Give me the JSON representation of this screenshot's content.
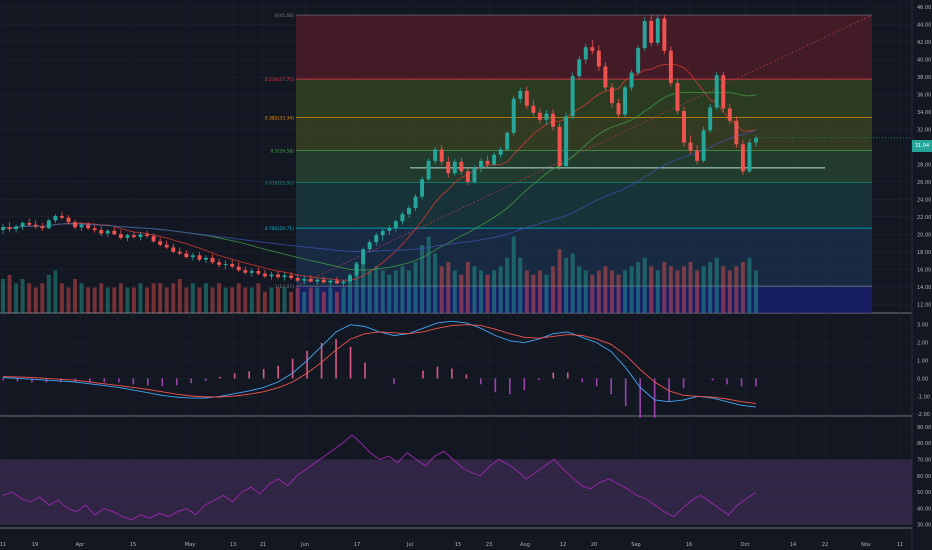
{
  "colors": {
    "background": "#131722",
    "grid": "#1f2430",
    "axis_text": "#b2b5be",
    "up": "#26a69a",
    "down": "#ef5350",
    "vol_up": "#26a69a",
    "vol_down": "#ef5350",
    "ma_red": "#e53935",
    "ma_green": "#43a047",
    "ma_blue": "#3f51b5",
    "macd": "#42a5f5",
    "signal": "#ef5350",
    "rsi": "#9c27b0",
    "rsi_band": "#3a2a4f",
    "last_price_bg": "#26a69a"
  },
  "price_axis": {
    "ticks": [
      "46.00",
      "44.00",
      "42.00",
      "40.00",
      "38.00",
      "36.00",
      "34.00",
      "32.00",
      "30.00",
      "28.00",
      "26.00",
      "24.00",
      "22.00",
      "20.00",
      "18.00",
      "16.00",
      "14.00",
      "12.00"
    ]
  },
  "last_price": "31.04",
  "macd_axis": {
    "ticks": [
      "3.00",
      "2.00",
      "1.00",
      "0.00",
      "-1.00",
      "-2.00"
    ]
  },
  "rsi_axis": {
    "ticks": [
      "90.00",
      "80.00",
      "70.00",
      "60.00",
      "50.00",
      "40.00",
      "30.00"
    ]
  },
  "time_axis": {
    "ticks": [
      "11",
      "19",
      "Apr",
      "15",
      "May",
      "13",
      "21",
      "Jun",
      "17",
      "Jul",
      "15",
      "23",
      "Aug",
      "12",
      "20",
      "Sep",
      "16",
      "Oct",
      "14",
      "22",
      "Nov",
      "11"
    ]
  },
  "fib_levels": [
    {
      "label": "0(45.08)",
      "value": 45.08,
      "color": "#787b86"
    },
    {
      "label": "0.236(37.75)",
      "value": 37.75,
      "color": "#f23645"
    },
    {
      "label": "0.382(33.34)",
      "value": 33.34,
      "color": "#ff9800"
    },
    {
      "label": "0.5(29.58)",
      "value": 29.58,
      "color": "#4caf50"
    },
    {
      "label": "0.618(25.92)",
      "value": 25.92,
      "color": "#089981"
    },
    {
      "label": "0.786(20.71)",
      "value": 20.71,
      "color": "#00bcd4"
    },
    {
      "label": "1(14.07)",
      "value": 14.07,
      "color": "#787b86"
    }
  ],
  "chart_data": {
    "type": "candlestick",
    "price_range": [
      11.0,
      46.8
    ],
    "horizontal_line": 27.6,
    "candles": [
      [
        20.5,
        21.2,
        20.1,
        20.8
      ],
      [
        20.8,
        21.4,
        20.3,
        20.6
      ],
      [
        20.6,
        21.1,
        20.2,
        20.9
      ],
      [
        20.9,
        21.5,
        20.5,
        21.3
      ],
      [
        21.3,
        21.8,
        20.9,
        21.1
      ],
      [
        21.1,
        21.6,
        20.6,
        20.9
      ],
      [
        20.9,
        21.3,
        20.4,
        20.7
      ],
      [
        20.7,
        21.8,
        20.6,
        21.6
      ],
      [
        21.6,
        22.3,
        21.3,
        22.1
      ],
      [
        22.1,
        22.6,
        21.7,
        21.9
      ],
      [
        21.9,
        22.2,
        21.2,
        21.4
      ],
      [
        21.4,
        21.7,
        20.6,
        20.8
      ],
      [
        20.8,
        21.3,
        20.4,
        21.1
      ],
      [
        21.1,
        21.4,
        20.5,
        20.7
      ],
      [
        20.7,
        21.0,
        20.2,
        20.5
      ],
      [
        20.5,
        20.9,
        19.8,
        20.1
      ],
      [
        20.1,
        20.6,
        19.7,
        20.4
      ],
      [
        20.4,
        20.8,
        19.9,
        20.0
      ],
      [
        20.0,
        20.5,
        19.4,
        19.6
      ],
      [
        19.6,
        20.1,
        19.2,
        19.9
      ],
      [
        19.9,
        20.3,
        19.5,
        19.7
      ],
      [
        19.7,
        20.2,
        19.3,
        20.0
      ],
      [
        20.0,
        20.4,
        19.6,
        19.8
      ],
      [
        19.8,
        20.1,
        19.0,
        19.2
      ],
      [
        19.2,
        19.6,
        18.6,
        18.8
      ],
      [
        18.8,
        19.3,
        18.3,
        18.5
      ],
      [
        18.5,
        18.9,
        17.8,
        18.0
      ],
      [
        18.0,
        18.5,
        17.6,
        17.8
      ],
      [
        17.8,
        18.2,
        17.2,
        17.4
      ],
      [
        17.4,
        17.9,
        17.0,
        17.6
      ],
      [
        17.6,
        18.0,
        16.9,
        17.1
      ],
      [
        17.1,
        17.6,
        16.7,
        17.3
      ],
      [
        17.3,
        17.7,
        16.6,
        16.8
      ],
      [
        16.8,
        17.2,
        16.2,
        16.5
      ],
      [
        16.5,
        17.0,
        16.0,
        16.6
      ],
      [
        16.6,
        17.1,
        16.1,
        16.3
      ],
      [
        16.3,
        16.8,
        15.7,
        15.9
      ],
      [
        15.9,
        16.3,
        15.4,
        15.6
      ],
      [
        15.6,
        16.1,
        15.2,
        15.8
      ],
      [
        15.8,
        16.2,
        15.3,
        15.5
      ],
      [
        15.5,
        15.9,
        15.0,
        15.2
      ],
      [
        15.2,
        15.7,
        14.8,
        15.4
      ],
      [
        15.4,
        15.8,
        14.9,
        15.1
      ],
      [
        15.1,
        15.6,
        14.7,
        15.3
      ],
      [
        15.3,
        15.7,
        14.8,
        15.0
      ],
      [
        15.0,
        15.4,
        14.5,
        14.7
      ],
      [
        14.7,
        15.2,
        14.3,
        14.9
      ],
      [
        14.9,
        15.3,
        14.5,
        14.6
      ],
      [
        14.6,
        15.0,
        14.2,
        14.8
      ],
      [
        14.8,
        15.2,
        14.4,
        14.5
      ],
      [
        14.5,
        14.9,
        14.1,
        14.7
      ],
      [
        14.7,
        15.1,
        14.3,
        14.4
      ],
      [
        14.4,
        14.8,
        14.0,
        14.6
      ],
      [
        14.6,
        15.5,
        14.5,
        15.3
      ],
      [
        15.3,
        16.8,
        15.1,
        16.6
      ],
      [
        16.6,
        18.5,
        16.4,
        18.3
      ],
      [
        18.3,
        19.4,
        17.9,
        19.1
      ],
      [
        19.1,
        20.2,
        18.7,
        19.9
      ],
      [
        19.9,
        20.6,
        19.3,
        20.4
      ],
      [
        20.4,
        21.0,
        19.9,
        20.7
      ],
      [
        20.7,
        21.7,
        20.3,
        21.5
      ],
      [
        21.5,
        22.6,
        21.1,
        22.3
      ],
      [
        22.3,
        23.3,
        21.9,
        23.0
      ],
      [
        23.0,
        24.6,
        22.7,
        24.3
      ],
      [
        24.3,
        26.6,
        24.0,
        26.3
      ],
      [
        26.3,
        28.7,
        26.1,
        28.4
      ],
      [
        28.4,
        30.0,
        28.0,
        29.7
      ],
      [
        29.7,
        30.2,
        27.9,
        28.3
      ],
      [
        28.3,
        28.9,
        26.5,
        27.0
      ],
      [
        27.0,
        28.6,
        26.7,
        28.3
      ],
      [
        28.3,
        28.8,
        26.8,
        27.2
      ],
      [
        27.2,
        27.7,
        25.6,
        26.0
      ],
      [
        26.0,
        27.9,
        25.8,
        27.6
      ],
      [
        27.6,
        28.7,
        27.1,
        28.4
      ],
      [
        28.4,
        29.0,
        27.7,
        28.0
      ],
      [
        28.0,
        29.4,
        27.8,
        29.1
      ],
      [
        29.1,
        30.0,
        28.7,
        29.7
      ],
      [
        29.7,
        31.8,
        29.5,
        31.6
      ],
      [
        31.6,
        35.8,
        31.3,
        35.5
      ],
      [
        35.5,
        36.8,
        35.0,
        36.4
      ],
      [
        36.4,
        36.9,
        34.3,
        34.7
      ],
      [
        34.7,
        35.4,
        33.5,
        33.9
      ],
      [
        33.9,
        34.4,
        32.7,
        33.1
      ],
      [
        33.1,
        34.2,
        32.6,
        33.8
      ],
      [
        33.8,
        34.3,
        31.9,
        32.3
      ],
      [
        32.3,
        32.7,
        27.4,
        27.8
      ],
      [
        27.8,
        33.9,
        27.6,
        33.5
      ],
      [
        33.5,
        38.5,
        33.2,
        38.1
      ],
      [
        38.1,
        40.4,
        37.7,
        40.0
      ],
      [
        40.0,
        41.8,
        39.5,
        41.4
      ],
      [
        41.4,
        42.2,
        40.6,
        41.0
      ],
      [
        41.0,
        41.6,
        38.7,
        39.2
      ],
      [
        39.2,
        39.7,
        36.4,
        36.8
      ],
      [
        36.8,
        37.3,
        34.5,
        35.0
      ],
      [
        35.0,
        35.5,
        33.3,
        33.7
      ],
      [
        33.7,
        37.1,
        33.4,
        36.8
      ],
      [
        36.8,
        38.8,
        36.4,
        38.5
      ],
      [
        38.5,
        41.6,
        38.2,
        41.3
      ],
      [
        41.3,
        44.8,
        41.0,
        44.4
      ],
      [
        44.4,
        45.1,
        41.5,
        41.9
      ],
      [
        41.9,
        45.1,
        41.6,
        44.7
      ],
      [
        44.7,
        45.1,
        40.6,
        41.0
      ],
      [
        41.0,
        41.5,
        36.9,
        37.3
      ],
      [
        37.3,
        37.8,
        33.7,
        34.1
      ],
      [
        34.1,
        34.6,
        30.1,
        30.5
      ],
      [
        30.5,
        31.3,
        29.2,
        29.6
      ],
      [
        29.6,
        30.2,
        28.0,
        28.4
      ],
      [
        28.4,
        32.3,
        28.2,
        31.9
      ],
      [
        31.9,
        34.9,
        31.6,
        34.5
      ],
      [
        34.5,
        38.6,
        34.2,
        38.2
      ],
      [
        38.2,
        38.6,
        34.0,
        34.4
      ],
      [
        34.4,
        34.9,
        32.6,
        33.0
      ],
      [
        33.0,
        33.5,
        29.9,
        30.3
      ],
      [
        30.3,
        30.8,
        26.8,
        27.2
      ],
      [
        27.2,
        30.9,
        27.0,
        30.5
      ],
      [
        30.5,
        31.3,
        30.0,
        31.0
      ]
    ],
    "volumes": [
      8,
      9,
      7,
      8,
      7,
      6,
      7,
      9,
      10,
      7,
      6,
      8,
      7,
      6,
      6,
      7,
      6,
      6,
      7,
      6,
      6,
      7,
      6,
      7,
      7,
      6,
      7,
      8,
      6,
      7,
      6,
      7,
      6,
      7,
      6,
      6,
      7,
      6,
      6,
      7,
      5,
      6,
      6,
      6,
      5,
      6,
      5,
      6,
      6,
      5,
      6,
      5,
      6,
      9,
      12,
      14,
      10,
      11,
      10,
      9,
      10,
      11,
      10,
      12,
      16,
      18,
      14,
      11,
      12,
      10,
      9,
      12,
      11,
      10,
      9,
      10,
      11,
      13,
      18,
      13,
      10,
      9,
      10,
      9,
      11,
      15,
      13,
      14,
      11,
      10,
      9,
      10,
      11,
      10,
      9,
      10,
      11,
      12,
      13,
      11,
      10,
      12,
      11,
      10,
      11,
      12,
      10,
      11,
      12,
      13,
      11,
      10,
      11,
      12,
      13,
      10
    ],
    "macd": [
      0.05,
      0.0,
      -0.05,
      -0.1,
      -0.15,
      -0.2,
      -0.3,
      -0.4,
      -0.5,
      -0.65,
      -0.8,
      -0.95,
      -1.05,
      -1.1,
      -1.1,
      -1.0,
      -0.85,
      -0.7,
      -0.5,
      -0.2,
      0.3,
      1.0,
      1.8,
      2.6,
      3.0,
      2.9,
      2.6,
      2.4,
      2.5,
      2.8,
      3.1,
      3.2,
      3.1,
      2.8,
      2.4,
      2.1,
      2.0,
      2.2,
      2.5,
      2.6,
      2.3,
      2.0,
      1.5,
      0.6,
      -0.5,
      -1.2,
      -1.3,
      -1.2,
      -1.0,
      -1.1,
      -1.3,
      -1.5,
      -1.6
    ],
    "signal": [
      0.1,
      0.08,
      0.05,
      0.0,
      -0.05,
      -0.1,
      -0.2,
      -0.3,
      -0.4,
      -0.5,
      -0.62,
      -0.75,
      -0.88,
      -0.98,
      -1.04,
      -1.04,
      -0.98,
      -0.88,
      -0.74,
      -0.52,
      -0.2,
      0.3,
      0.9,
      1.6,
      2.2,
      2.5,
      2.6,
      2.55,
      2.5,
      2.6,
      2.8,
      2.95,
      3.0,
      2.95,
      2.75,
      2.5,
      2.3,
      2.25,
      2.35,
      2.45,
      2.4,
      2.2,
      1.9,
      1.3,
      0.5,
      -0.2,
      -0.7,
      -0.95,
      -1.0,
      -1.05,
      -1.15,
      -1.3,
      -1.4
    ],
    "rsi": [
      48,
      50,
      46,
      44,
      47,
      42,
      45,
      40,
      38,
      42,
      36,
      40,
      38,
      35,
      33,
      36,
      34,
      37,
      35,
      38,
      40,
      36,
      42,
      45,
      48,
      44,
      50,
      53,
      49,
      55,
      58,
      54,
      60,
      64,
      68,
      72,
      76,
      80,
      85,
      80,
      74,
      70,
      72,
      68,
      74,
      70,
      66,
      72,
      75,
      70,
      65,
      62,
      60,
      66,
      70,
      67,
      63,
      58,
      62,
      66,
      70,
      64,
      59,
      54,
      52,
      56,
      58,
      55,
      52,
      48,
      46,
      42,
      38,
      35,
      40,
      45,
      48,
      44,
      40,
      36,
      42,
      46,
      50
    ],
    "rsi_band": [
      30,
      70
    ],
    "rsi_ylim": [
      28,
      96
    ],
    "macd_ylim": [
      -2.1,
      3.6
    ]
  }
}
